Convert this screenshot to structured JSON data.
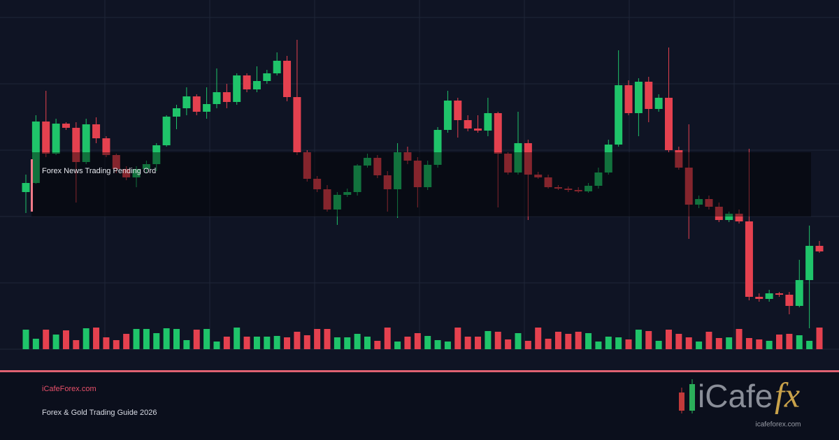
{
  "chart_data": {
    "type": "candlestick",
    "annotation": "Forex News Trading Pending Ord",
    "up_color": "#1fc46a",
    "down_color": "#e5414f",
    "grid": true,
    "ylim": [
      0,
      475
    ],
    "open": [
      225,
      238,
      326,
      280,
      323,
      317,
      268,
      322,
      302,
      278,
      258,
      246,
      258,
      265,
      292,
      333,
      345,
      362,
      340,
      351,
      368,
      354,
      392,
      372,
      384,
      395,
      413,
      361,
      282,
      244,
      229,
      200,
      221,
      225,
      263,
      274,
      249,
      229,
      282,
      270,
      232,
      264,
      314,
      356,
      328,
      316,
      313,
      338,
      280,
      253,
      295,
      250,
      246,
      232,
      230,
      228,
      226,
      234,
      253,
      293,
      378,
      338,
      383,
      344,
      360,
      285,
      260,
      207,
      215,
      204,
      185,
      194,
      183,
      75,
      72,
      80,
      78,
      62,
      99,
      148
    ],
    "high": [
      250,
      335,
      370,
      330,
      325,
      325,
      330,
      332,
      305,
      280,
      262,
      262,
      270,
      295,
      335,
      350,
      375,
      365,
      375,
      402,
      380,
      395,
      395,
      405,
      400,
      425,
      420,
      443,
      285,
      248,
      235,
      225,
      230,
      265,
      280,
      278,
      255,
      295,
      290,
      275,
      270,
      318,
      370,
      360,
      335,
      335,
      360,
      340,
      282,
      340,
      300,
      254,
      250,
      235,
      233,
      232,
      238,
      260,
      300,
      428,
      385,
      388,
      390,
      365,
      432,
      290,
      322,
      220,
      220,
      210,
      197,
      200,
      287,
      80,
      85,
      82,
      82,
      128,
      177,
      155
    ],
    "low": [
      195,
      237,
      275,
      278,
      314,
      210,
      265,
      295,
      275,
      252,
      242,
      232,
      252,
      255,
      290,
      315,
      335,
      335,
      330,
      345,
      345,
      350,
      368,
      368,
      380,
      392,
      355,
      278,
      240,
      225,
      197,
      178,
      218,
      220,
      260,
      245,
      197,
      188,
      265,
      203,
      228,
      260,
      310,
      303,
      312,
      310,
      305,
      203,
      250,
      250,
      185,
      244,
      230,
      228,
      225,
      224,
      224,
      230,
      250,
      290,
      335,
      305,
      325,
      340,
      282,
      257,
      158,
      202,
      200,
      182,
      182,
      180,
      70,
      68,
      68,
      75,
      50,
      60,
      30,
      138
    ],
    "close": [
      238,
      326,
      280,
      323,
      317,
      268,
      322,
      302,
      278,
      258,
      246,
      258,
      265,
      292,
      333,
      345,
      362,
      340,
      351,
      368,
      354,
      392,
      372,
      384,
      395,
      413,
      361,
      282,
      244,
      229,
      200,
      221,
      225,
      263,
      274,
      249,
      229,
      282,
      270,
      232,
      264,
      314,
      356,
      328,
      316,
      313,
      338,
      280,
      253,
      295,
      250,
      246,
      232,
      230,
      228,
      226,
      234,
      253,
      293,
      378,
      338,
      383,
      344,
      360,
      285,
      260,
      207,
      215,
      204,
      185,
      194,
      183,
      75,
      72,
      80,
      78,
      62,
      99,
      148,
      140
    ],
    "volume": [
      28,
      15,
      28,
      21,
      27,
      13,
      30,
      31,
      17,
      13,
      22,
      29,
      29,
      23,
      30,
      29,
      13,
      28,
      29,
      11,
      18,
      31,
      18,
      18,
      18,
      19,
      17,
      25,
      20,
      29,
      29,
      17,
      17,
      22,
      18,
      12,
      31,
      11,
      18,
      23,
      19,
      13,
      11,
      31,
      18,
      18,
      26,
      25,
      14,
      23,
      12,
      31,
      15,
      25,
      22,
      25,
      23,
      11,
      18,
      17,
      14,
      28,
      26,
      12,
      28,
      22,
      17,
      11,
      25,
      16,
      17,
      29,
      16,
      14,
      12,
      21,
      22,
      20,
      12,
      31
    ]
  },
  "footer": {
    "site": "iCafeForex.com",
    "subtitle": "Forex & Gold Trading Guide 2026"
  },
  "logo": {
    "brand": "iCafe",
    "mark": "fx",
    "url": "icafeforex.com"
  }
}
